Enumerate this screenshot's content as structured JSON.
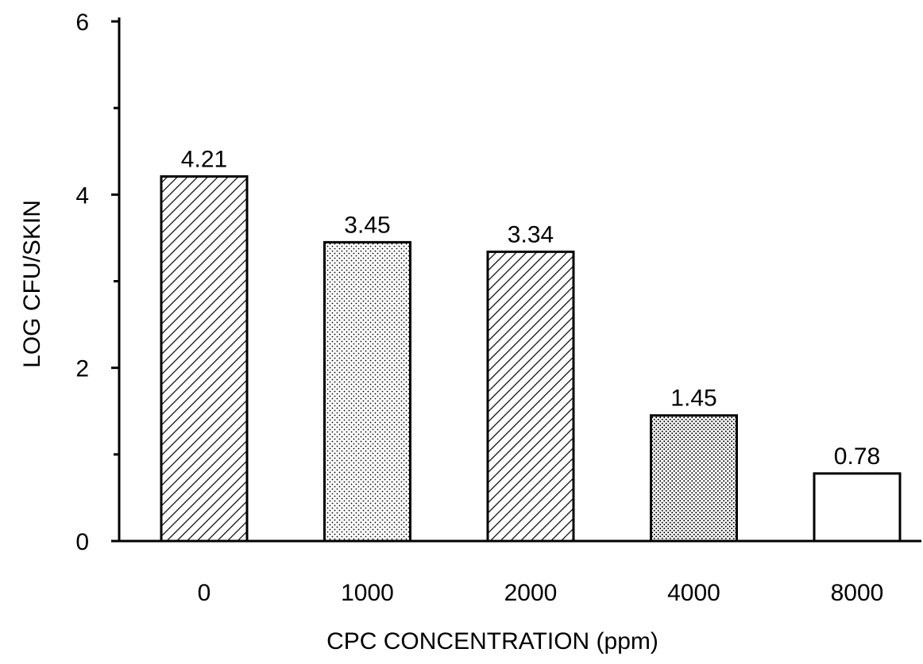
{
  "chart_data": {
    "type": "bar",
    "title": "",
    "xlabel": "CPC CONCENTRATION (ppm)",
    "ylabel": "LOG CFU/SKIN",
    "categories": [
      "0",
      "1000",
      "2000",
      "4000",
      "8000"
    ],
    "values": [
      4.21,
      3.45,
      3.34,
      1.45,
      0.78
    ],
    "data_labels": [
      "4.21",
      "3.45",
      "3.34",
      "1.45",
      "0.78"
    ],
    "patterns": [
      "hatch",
      "dots",
      "hatch",
      "dots-dense",
      "empty"
    ],
    "ylim": [
      0,
      6
    ],
    "yticks_major": [
      "0",
      "2",
      "4",
      "6"
    ],
    "yticks_minor": [
      1,
      3,
      5
    ],
    "grid": false,
    "legend": "none"
  }
}
